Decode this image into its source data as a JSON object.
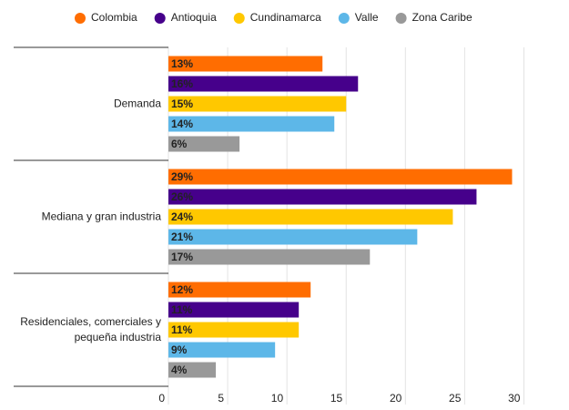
{
  "chart_data": {
    "type": "hbar",
    "categories": [
      "Demanda",
      "Mediana y gran industria",
      "Residenciales, comerciales y pequeña industria"
    ],
    "series": [
      {
        "name": "Colombia",
        "color": "#ff6d01",
        "values": [
          13,
          29,
          12
        ],
        "value_labels": [
          "13%",
          "29%",
          "12%"
        ]
      },
      {
        "name": "Antioquia",
        "color": "#46008b",
        "values": [
          16,
          26,
          11
        ],
        "value_labels": [
          "16%",
          "26%",
          "11%"
        ]
      },
      {
        "name": "Cundinamarca",
        "color": "#ffc800",
        "values": [
          15,
          24,
          11
        ],
        "value_labels": [
          "15%",
          "24%",
          "11%"
        ]
      },
      {
        "name": "Valle",
        "color": "#5db7e8",
        "values": [
          14,
          21,
          9
        ],
        "value_labels": [
          "14%",
          "21%",
          "9%"
        ]
      },
      {
        "name": "Zona Caribe",
        "color": "#999999",
        "values": [
          6,
          17,
          4
        ],
        "value_labels": [
          "6%",
          "17%",
          "4%"
        ]
      }
    ],
    "xlim": [
      0,
      30.5
    ],
    "xticks": [
      0,
      5,
      10,
      15,
      20,
      25,
      30
    ],
    "grid": true,
    "legend": "top"
  }
}
